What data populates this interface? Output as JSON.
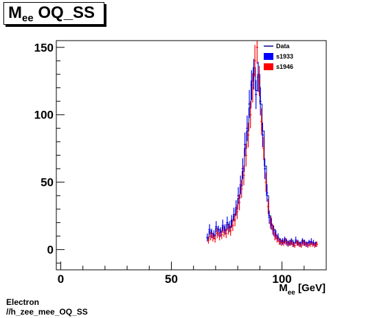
{
  "title": {
    "main": "M",
    "sub": "ee",
    "rest": " OQ_SS"
  },
  "footer": {
    "line1": "Electron",
    "line2": "//h_zee_mee_OQ_SS"
  },
  "chart_data": {
    "type": "scatter",
    "title": "M_ee OQ_SS",
    "xlabel": "M_ee [GeV]",
    "xlabel_main": "M",
    "xlabel_sub": "ee",
    "xlabel_rest": " [GeV]",
    "ylabel": "",
    "xlim": [
      -2,
      120
    ],
    "ylim": [
      -15,
      155
    ],
    "x_ticks": [
      0,
      50,
      100
    ],
    "y_ticks": [
      0,
      50,
      100,
      150
    ],
    "grid": false,
    "legend_position": "top-right",
    "colors": {
      "Data": "#00008b",
      "s1933": "#0000ff",
      "s1946": "#ff0000"
    },
    "series": [
      {
        "name": "Data",
        "style": "line",
        "x": [
          66.5,
          67.5,
          68.5,
          69.5,
          70.5,
          71.5,
          72.5,
          73.5,
          74.5,
          75.5,
          76.5,
          77.5,
          78.5,
          79.5,
          80.5,
          81.5,
          82.5,
          83.5,
          84.5,
          85.5,
          86.5,
          87.5,
          88.5,
          89.5,
          90.5,
          91.5,
          92.5,
          93.5,
          94.5,
          95.5,
          96.5,
          97.5,
          98.5,
          99.5,
          100.5,
          101.5,
          102.5,
          103.5,
          104.5,
          105.5,
          106.5,
          107.5,
          108.5,
          109.5,
          110.5,
          111.5,
          112.5,
          113.5,
          114.5,
          115.5
        ],
        "values": [
          8,
          14,
          12,
          10,
          16,
          15,
          13,
          17,
          14,
          19,
          16,
          22,
          25,
          30,
          38,
          47,
          58,
          75,
          88,
          105,
          125,
          135,
          118,
          130,
          108,
          88,
          62,
          40,
          25,
          18,
          15,
          10,
          8,
          7,
          5,
          8,
          6,
          4,
          7,
          5,
          6,
          4,
          5,
          7,
          4,
          5,
          6,
          5,
          4,
          5
        ]
      },
      {
        "name": "s1933",
        "style": "points",
        "x": [
          66.25,
          67.25,
          68.25,
          69.25,
          70.25,
          71.25,
          72.25,
          73.25,
          74.25,
          75.25,
          76.25,
          77.25,
          78.25,
          79.25,
          80.25,
          81.25,
          82.25,
          83.25,
          84.25,
          85.25,
          86.25,
          87.25,
          88.25,
          89.25,
          90.25,
          91.25,
          92.25,
          93.25,
          94.25,
          95.25,
          96.25,
          97.25,
          98.25,
          99.25,
          100.25,
          101.25,
          102.25,
          103.25,
          104.25,
          105.25,
          106.25,
          107.25,
          108.25,
          109.25,
          110.25,
          111.25,
          112.25,
          113.25,
          114.25,
          115.25
        ],
        "values": [
          9,
          15,
          12,
          11,
          17,
          14,
          13,
          18,
          15,
          20,
          17,
          21,
          26,
          31,
          40,
          48,
          60,
          78,
          90,
          108,
          122,
          130,
          115,
          128,
          110,
          85,
          60,
          42,
          24,
          19,
          14,
          11,
          9,
          6,
          6,
          7,
          5,
          5,
          6,
          4,
          7,
          5,
          4,
          6,
          5,
          4,
          5,
          6,
          5,
          4
        ]
      },
      {
        "name": "s1946",
        "style": "points",
        "x": [
          66.75,
          67.75,
          68.75,
          69.75,
          70.75,
          71.75,
          72.75,
          73.75,
          74.75,
          75.75,
          76.75,
          77.75,
          78.75,
          79.75,
          80.75,
          81.75,
          82.75,
          83.75,
          84.75,
          85.75,
          86.75,
          87.75,
          88.75,
          89.75,
          90.75,
          91.75,
          92.75,
          93.75,
          94.75,
          95.75,
          96.75,
          97.75,
          98.75,
          99.75,
          100.75,
          101.75,
          102.75,
          103.75,
          104.75,
          105.75,
          106.75,
          107.75,
          108.75,
          109.75,
          110.75,
          111.75,
          112.75,
          113.75,
          114.75,
          115.75
        ],
        "values": [
          7,
          10,
          9,
          8,
          12,
          10,
          11,
          13,
          12,
          15,
          14,
          18,
          22,
          28,
          35,
          45,
          55,
          70,
          85,
          100,
          120,
          140,
          150,
          125,
          95,
          75,
          50,
          32,
          20,
          15,
          10,
          8,
          6,
          5,
          5,
          6,
          4,
          5,
          4,
          3,
          5,
          4,
          3,
          5,
          4,
          3,
          4,
          4,
          3,
          4
        ]
      }
    ]
  }
}
